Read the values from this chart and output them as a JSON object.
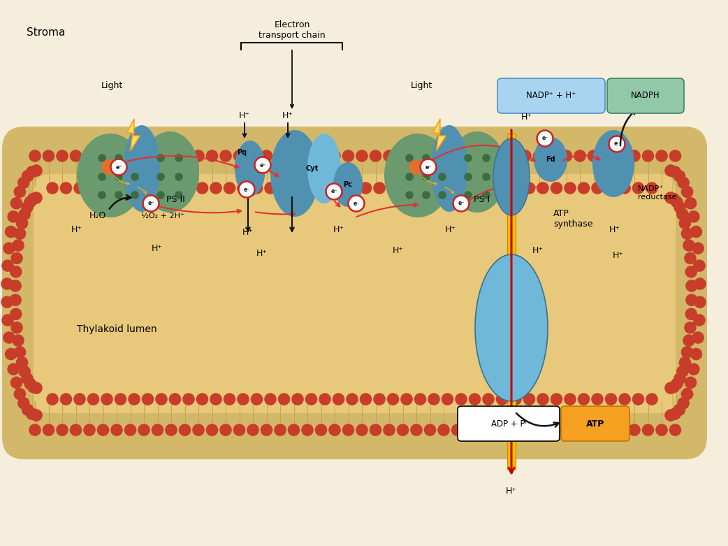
{
  "background_color": "#f5eedc",
  "membrane_outer_color": "#d4b86a",
  "membrane_inner_color": "#e8c87a",
  "lumen_color": "#e8c87a",
  "red_bead_color": "#c83c2a",
  "lipid_tail_color": "#c4a840",
  "green_protein_color": "#6a9a6e",
  "green_protein_dark": "#3d6b42",
  "blue_protein_color": "#5090b0",
  "blue_protein_light": "#70b8d8",
  "orange_dot_color": "#e07030",
  "electron_border_color": "#cc2222",
  "arrow_electron_color": "#dd3333",
  "arrow_yellow_color": "#ddaa22",
  "arrow_black_color": "#111111",
  "light_bolt_outer": "#f5a020",
  "light_bolt_inner": "#ffe060",
  "nadp_box_color": "#a8d4f0",
  "nadp_box_edge": "#5090c0",
  "nadph_box_color": "#90c8a8",
  "nadph_box_edge": "#408060",
  "atp_box_color": "#f5a020",
  "atp_box_edge": "#c07800",
  "atp_stalk_color": "#f0c000",
  "atp_stalk_edge": "#c09000",
  "labels": {
    "stroma": "Stroma",
    "thylakoid_lumen": "Thylakoid lumen",
    "electron_transport": "Electron\ntransport chain",
    "light1": "Light",
    "light2": "Light",
    "psII": "PS II",
    "psI": "PS I",
    "h2o": "H₂O",
    "o2h": "½O₂ + 2H⁺",
    "pq": "Pq",
    "cyt": "Cyt",
    "pc": "Pc",
    "fd": "Fd",
    "nadp_reductase": "NADP⁺\nreductase",
    "nadp_h": "NADP⁺ + H⁺",
    "nadph": "NADPH",
    "atp_synthase": "ATP\nsynthase",
    "adp_pi": "ADP + Pᴵ",
    "atp": "ATP"
  }
}
